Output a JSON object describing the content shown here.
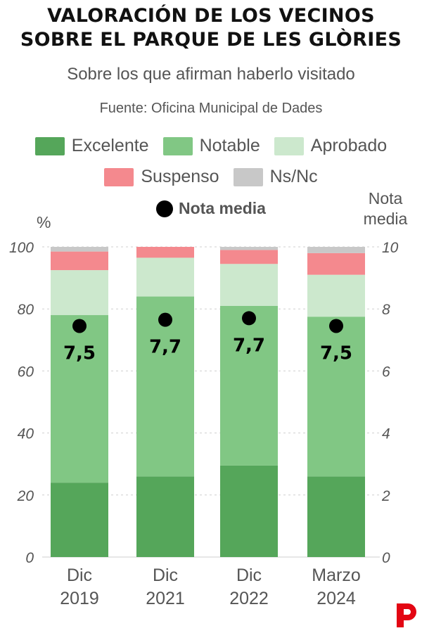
{
  "header": {
    "title_line1": "VALORACIÓN DE LOS VECINOS",
    "title_line2": "SOBRE EL PARQUE DE LES GLÒRIES",
    "subtitle": "Sobre los que afirman haberlo visitado",
    "source": "Fuente: Oficina Municipal de Dades"
  },
  "legend": {
    "items": [
      {
        "label": "Excelente",
        "color": "#55a65a"
      },
      {
        "label": "Notable",
        "color": "#81c784"
      },
      {
        "label": "Aprobado",
        "color": "#cce8cd"
      },
      {
        "label": "Suspenso",
        "color": "#f4898e"
      },
      {
        "label": "Ns/Nc",
        "color": "#c8c8c8"
      }
    ],
    "dot_label": "Nota media"
  },
  "chart_data": {
    "type": "bar",
    "stacked": true,
    "categories": [
      [
        "Dic",
        "2019"
      ],
      [
        "Dic",
        "2021"
      ],
      [
        "Dic",
        "2022"
      ],
      [
        "Marzo",
        "2024"
      ]
    ],
    "series": [
      {
        "name": "Excelente",
        "color": "#55a65a",
        "values": [
          24,
          26,
          29.5,
          26
        ]
      },
      {
        "name": "Notable",
        "color": "#81c784",
        "values": [
          54,
          58,
          51.5,
          51.5
        ]
      },
      {
        "name": "Aprobado",
        "color": "#cce8cd",
        "values": [
          14.5,
          12.5,
          13.5,
          13.5
        ]
      },
      {
        "name": "Suspenso",
        "color": "#f4898e",
        "values": [
          6,
          3.5,
          4.5,
          7
        ]
      },
      {
        "name": "Ns/Nc",
        "color": "#c8c8c8",
        "values": [
          1.5,
          0,
          1,
          2
        ]
      }
    ],
    "nota_media": {
      "name": "Nota media",
      "values": [
        7.5,
        7.7,
        7.7,
        7.5
      ],
      "labels": [
        "7,5",
        "7,7",
        "7,7",
        "7,5"
      ],
      "dot_y_pct": [
        74.5,
        76.5,
        77,
        74.5
      ]
    },
    "y_left": {
      "label": "%",
      "ticks": [
        0,
        20,
        40,
        60,
        80,
        100
      ],
      "ylim": [
        0,
        100
      ]
    },
    "y_right": {
      "label": [
        "Nota",
        "media"
      ],
      "ticks": [
        0,
        2,
        4,
        6,
        8,
        10
      ],
      "ylim": [
        0,
        10
      ]
    }
  },
  "brand": {
    "logo_color": "#e30613"
  }
}
